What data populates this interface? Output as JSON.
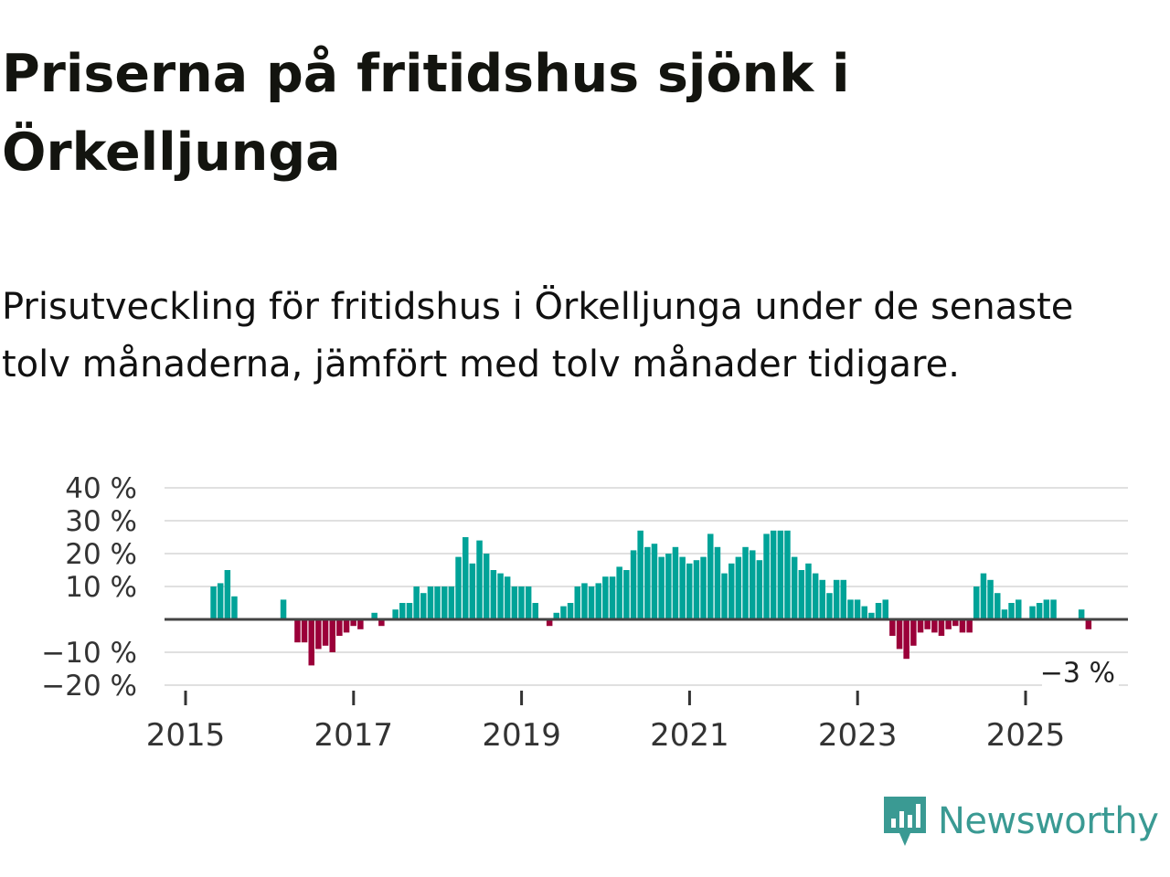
{
  "title": "Priserna på fritidshus sjönk i Örkelljunga",
  "subtitle": "Prisutveckling för fritidshus i Örkelljunga under de senaste tolv månaderna, jämfört med tolv månader tidigare.",
  "brand": "Newsworthy",
  "colors": {
    "positive": "#00a398",
    "negative": "#9b0039",
    "grid": "#e0e0e0",
    "zero": "#444444",
    "brand": "#3a9a93"
  },
  "chart_data": {
    "type": "bar",
    "start_month": "2015-01",
    "frequency": "monthly",
    "ylim": [
      -20,
      40
    ],
    "yticks": [
      {
        "value": 40,
        "label": "40 %"
      },
      {
        "value": 30,
        "label": "30 %"
      },
      {
        "value": 20,
        "label": "20 %"
      },
      {
        "value": 10,
        "label": "10 %"
      },
      {
        "value": -10,
        "label": "−10 %"
      },
      {
        "value": -20,
        "label": "−20 %"
      }
    ],
    "xticks": [
      {
        "year": 2015,
        "label": "2015"
      },
      {
        "year": 2017,
        "label": "2017"
      },
      {
        "year": 2019,
        "label": "2019"
      },
      {
        "year": 2021,
        "label": "2021"
      },
      {
        "year": 2023,
        "label": "2023"
      },
      {
        "year": 2025,
        "label": "2025"
      }
    ],
    "xlim_years": [
      2014.9,
      2026.25
    ],
    "values": [
      null,
      null,
      null,
      10,
      11,
      15,
      7,
      null,
      null,
      null,
      null,
      null,
      null,
      6,
      null,
      -7,
      -7,
      -14,
      -9,
      -8,
      -10,
      -5,
      -4,
      -2,
      -3,
      null,
      2,
      -2,
      null,
      3,
      5,
      5,
      10,
      8,
      10,
      10,
      10,
      10,
      19,
      25,
      17,
      24,
      20,
      15,
      14,
      13,
      10,
      10,
      10,
      5,
      0,
      -2,
      2,
      4,
      5,
      10,
      11,
      10,
      11,
      13,
      13,
      16,
      15,
      21,
      27,
      22,
      23,
      19,
      20,
      22,
      19,
      17,
      18,
      19,
      26,
      22,
      14,
      17,
      19,
      22,
      21,
      18,
      26,
      27,
      27,
      27,
      19,
      15,
      17,
      14,
      12,
      8,
      12,
      12,
      6,
      6,
      4,
      2,
      5,
      6,
      -5,
      -9,
      -12,
      -8,
      -4,
      -3,
      -4,
      -5,
      -3,
      -2,
      -4,
      -4,
      10,
      14,
      12,
      8,
      3,
      5,
      6,
      null,
      4,
      5,
      6,
      6,
      null,
      null,
      null,
      3,
      -3
    ],
    "last_value_label": "−3 %",
    "title": "",
    "xlabel": "",
    "ylabel": ""
  }
}
